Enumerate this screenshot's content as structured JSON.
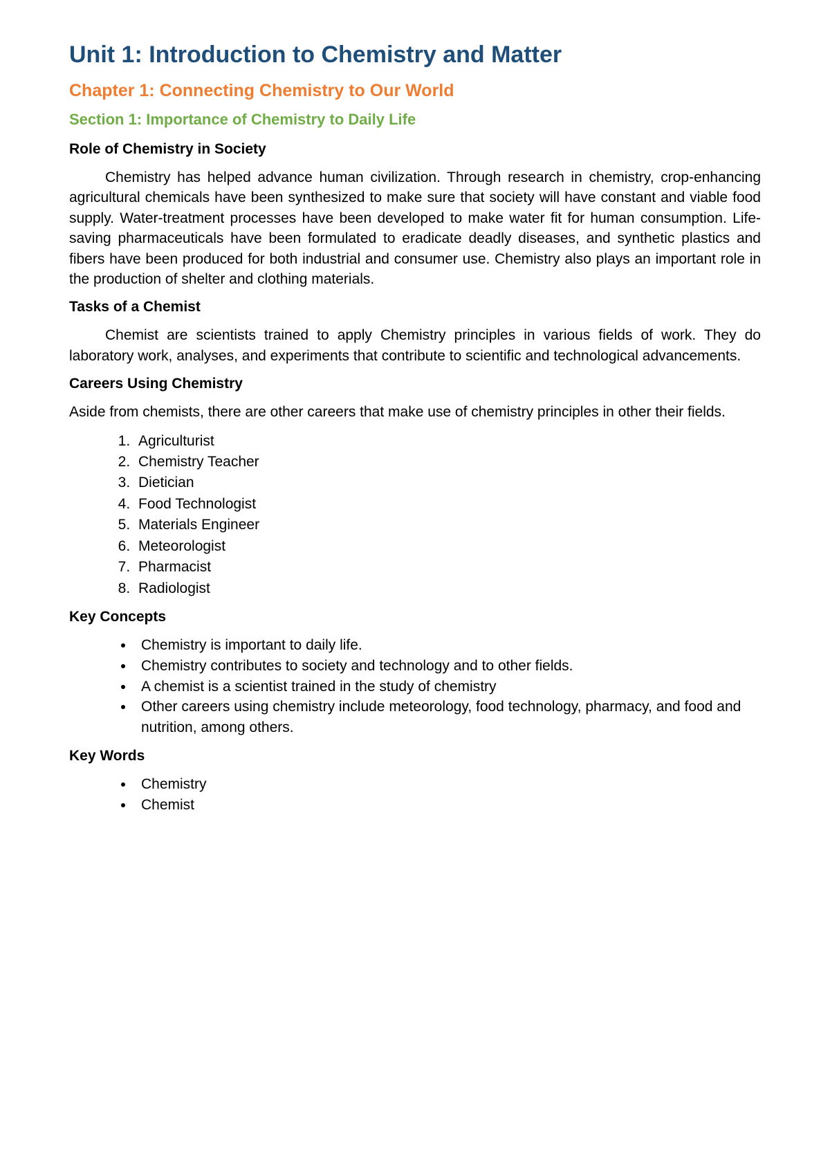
{
  "colors": {
    "unit_title": "#1f4e79",
    "chapter_title": "#ed7d31",
    "section_title": "#70ad47",
    "body_text": "#000000",
    "background": "#ffffff"
  },
  "typography": {
    "unit_title_size": 34,
    "chapter_title_size": 25,
    "section_title_size": 22,
    "subhead_size": 21,
    "body_size": 21,
    "font_family": "Verdana"
  },
  "headings": {
    "unit": "Unit 1: Introduction to Chemistry and Matter",
    "chapter": "Chapter 1: Connecting Chemistry to Our World",
    "section": "Section 1: Importance of Chemistry to Daily Life"
  },
  "subheads": {
    "role": "Role of Chemistry in Society",
    "tasks": "Tasks of a Chemist",
    "careers": "Careers Using Chemistry",
    "key_concepts": "Key Concepts",
    "key_words": "Key Words"
  },
  "paragraphs": {
    "role": "Chemistry has helped advance human civilization. Through research in chemistry, crop-enhancing agricultural chemicals have been synthesized to make sure that society will have constant and viable food supply. Water-treatment processes have been developed to make water fit for human consumption. Life-saving pharmaceuticals have been formulated to eradicate deadly diseases, and synthetic plastics and fibers have been produced for both industrial and consumer use. Chemistry also plays an important role in the production of shelter and clothing materials.",
    "tasks": "Chemist are scientists trained to apply Chemistry principles in various fields of work. They do laboratory work, analyses, and experiments that contribute to scientific and technological advancements.",
    "careers_intro": "Aside from chemists, there are other careers that make use of chemistry principles in other their fields."
  },
  "careers_list": [
    "Agriculturist",
    "Chemistry Teacher",
    "Dietician",
    "Food Technologist",
    "Materials Engineer",
    "Meteorologist",
    "Pharmacist",
    "Radiologist"
  ],
  "key_concepts_list": [
    "Chemistry is important to daily life.",
    "Chemistry contributes to society and technology and to other fields.",
    "A chemist is a scientist trained in the study of chemistry",
    "Other careers using chemistry include meteorology, food technology, pharmacy, and food and nutrition, among others."
  ],
  "key_words_list": [
    "Chemistry",
    "Chemist"
  ]
}
